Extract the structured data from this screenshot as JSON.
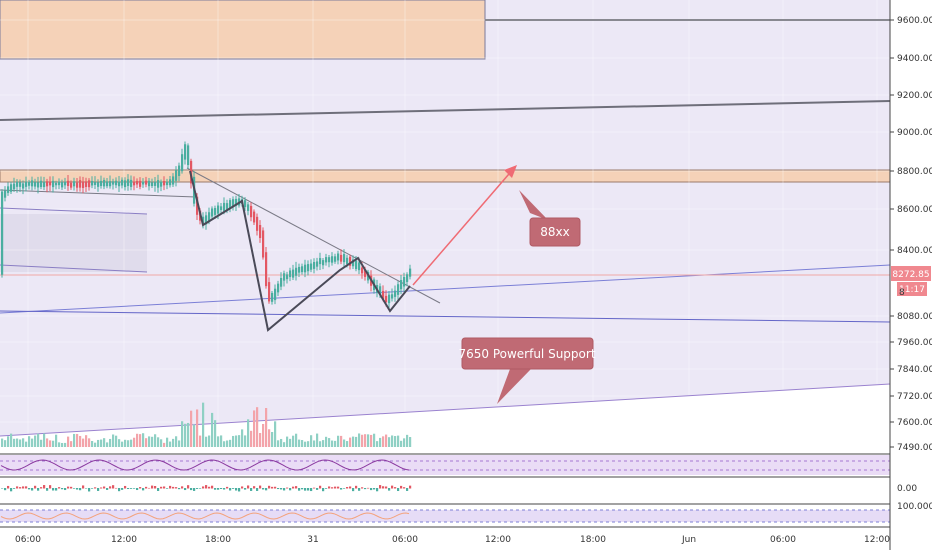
{
  "chart_data": {
    "type": "candlestick",
    "instrument_note": "BTC/USD-style price chart with drawn annotations",
    "price_axis": {
      "ticks": [
        9600,
        9400,
        9200,
        9000,
        8800,
        8600,
        8400,
        8080,
        7960,
        7840,
        7720,
        7600,
        7490
      ],
      "tick_labels": [
        "9600.00",
        "9400.00",
        "9200.00",
        "9000.00",
        "8800.00",
        "8600.00",
        "8400.00",
        "8080.00",
        "7960.00",
        "7840.00",
        "7720.00",
        "7600.00",
        "7490.00"
      ],
      "current_price_label": "8272.85",
      "countdown_label": "11:17",
      "partial_label": "8"
    },
    "time_axis": {
      "labels": [
        "06:00",
        "12:00",
        "18:00",
        "31",
        "06:00",
        "12:00",
        "18:00",
        "Jun",
        "06:00",
        "12:00"
      ]
    },
    "annotations": [
      {
        "kind": "callout",
        "text": "88xx"
      },
      {
        "kind": "callout",
        "text": "7650 Powerful Support"
      },
      {
        "kind": "arrow",
        "from_price": 8280,
        "to_price": 8830,
        "color": "#ef6b74"
      },
      {
        "kind": "zone",
        "from_price": 9400,
        "to_price": 9740,
        "color": "#f5cba4"
      },
      {
        "kind": "zone",
        "from_price": 8740,
        "to_price": 8810,
        "color": "#f5cba4"
      }
    ],
    "panes": {
      "indicator_1": {
        "ticks": [],
        "tick_labels": []
      },
      "indicator_2": {
        "tick_labels": [
          "0.00"
        ]
      },
      "indicator_3": {
        "tick_labels": [
          "100.0000"
        ]
      }
    },
    "grid": true
  }
}
